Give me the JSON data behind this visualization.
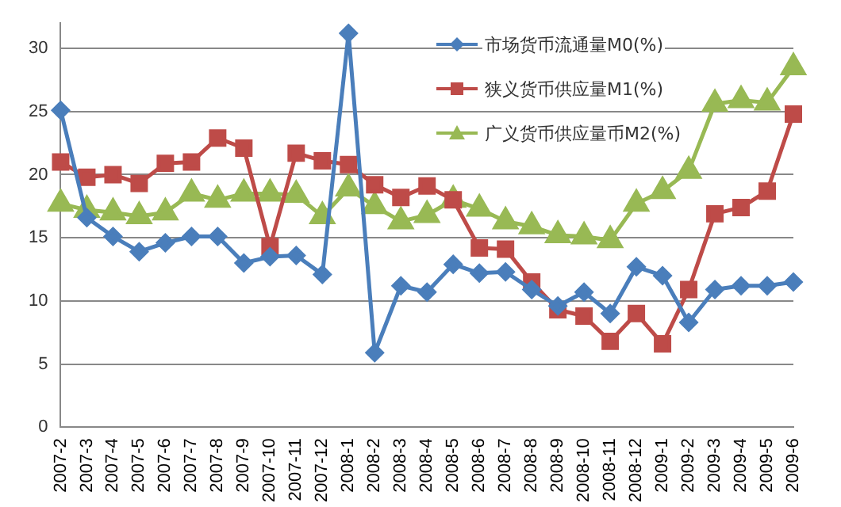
{
  "chart_data": {
    "type": "line",
    "categories": [
      "2007-2",
      "2007-3",
      "2007-4",
      "2007-5",
      "2007-6",
      "2007-7",
      "2007-8",
      "2007-9",
      "2007-10",
      "2007-11",
      "2007-12",
      "2008-1",
      "2008-2",
      "2008-3",
      "2008-4",
      "2008-5",
      "2008-6",
      "2008-7",
      "2008-8",
      "2008-9",
      "2008-10",
      "2008-11",
      "2008-12",
      "2009-1",
      "2009-2",
      "2009-3",
      "2009-4",
      "2009-5",
      "2009-6"
    ],
    "series": [
      {
        "name": "市场货币流通量M0(%)",
        "color": "#4a7ebb",
        "marker": "diamond",
        "values": [
          25.1,
          16.6,
          15.1,
          13.9,
          14.6,
          15.1,
          15.1,
          13.0,
          13.5,
          13.6,
          12.1,
          31.2,
          5.9,
          11.2,
          10.7,
          12.9,
          12.2,
          12.3,
          10.9,
          9.6,
          10.7,
          9.0,
          12.7,
          12.0,
          8.3,
          10.9,
          11.2,
          11.2,
          11.5
        ]
      },
      {
        "name": "狭义货币供应量M1(%)",
        "color": "#be4b48",
        "marker": "square",
        "values": [
          21.0,
          19.8,
          20.0,
          19.3,
          20.9,
          21.0,
          22.9,
          22.1,
          14.3,
          21.7,
          21.1,
          20.8,
          19.2,
          18.2,
          19.1,
          18.0,
          14.2,
          14.1,
          11.5,
          9.3,
          8.8,
          6.8,
          9.0,
          6.6,
          10.9,
          16.9,
          17.4,
          18.7,
          24.8
        ]
      },
      {
        "name": "广义货币供应量币M2(%)",
        "color": "#98b954",
        "marker": "triangle",
        "values": [
          17.7,
          17.2,
          17.0,
          16.7,
          17.0,
          18.5,
          18.0,
          18.5,
          18.5,
          18.4,
          16.7,
          18.9,
          17.5,
          16.3,
          16.8,
          18.0,
          17.3,
          16.3,
          15.9,
          15.2,
          15.1,
          14.8,
          17.7,
          18.7,
          20.3,
          25.6,
          25.9,
          25.7,
          28.5
        ]
      }
    ],
    "ylim": [
      0,
      32
    ],
    "yticks": [
      0,
      5,
      10,
      15,
      20,
      25,
      30
    ],
    "grid": "y",
    "legend": "top right"
  }
}
